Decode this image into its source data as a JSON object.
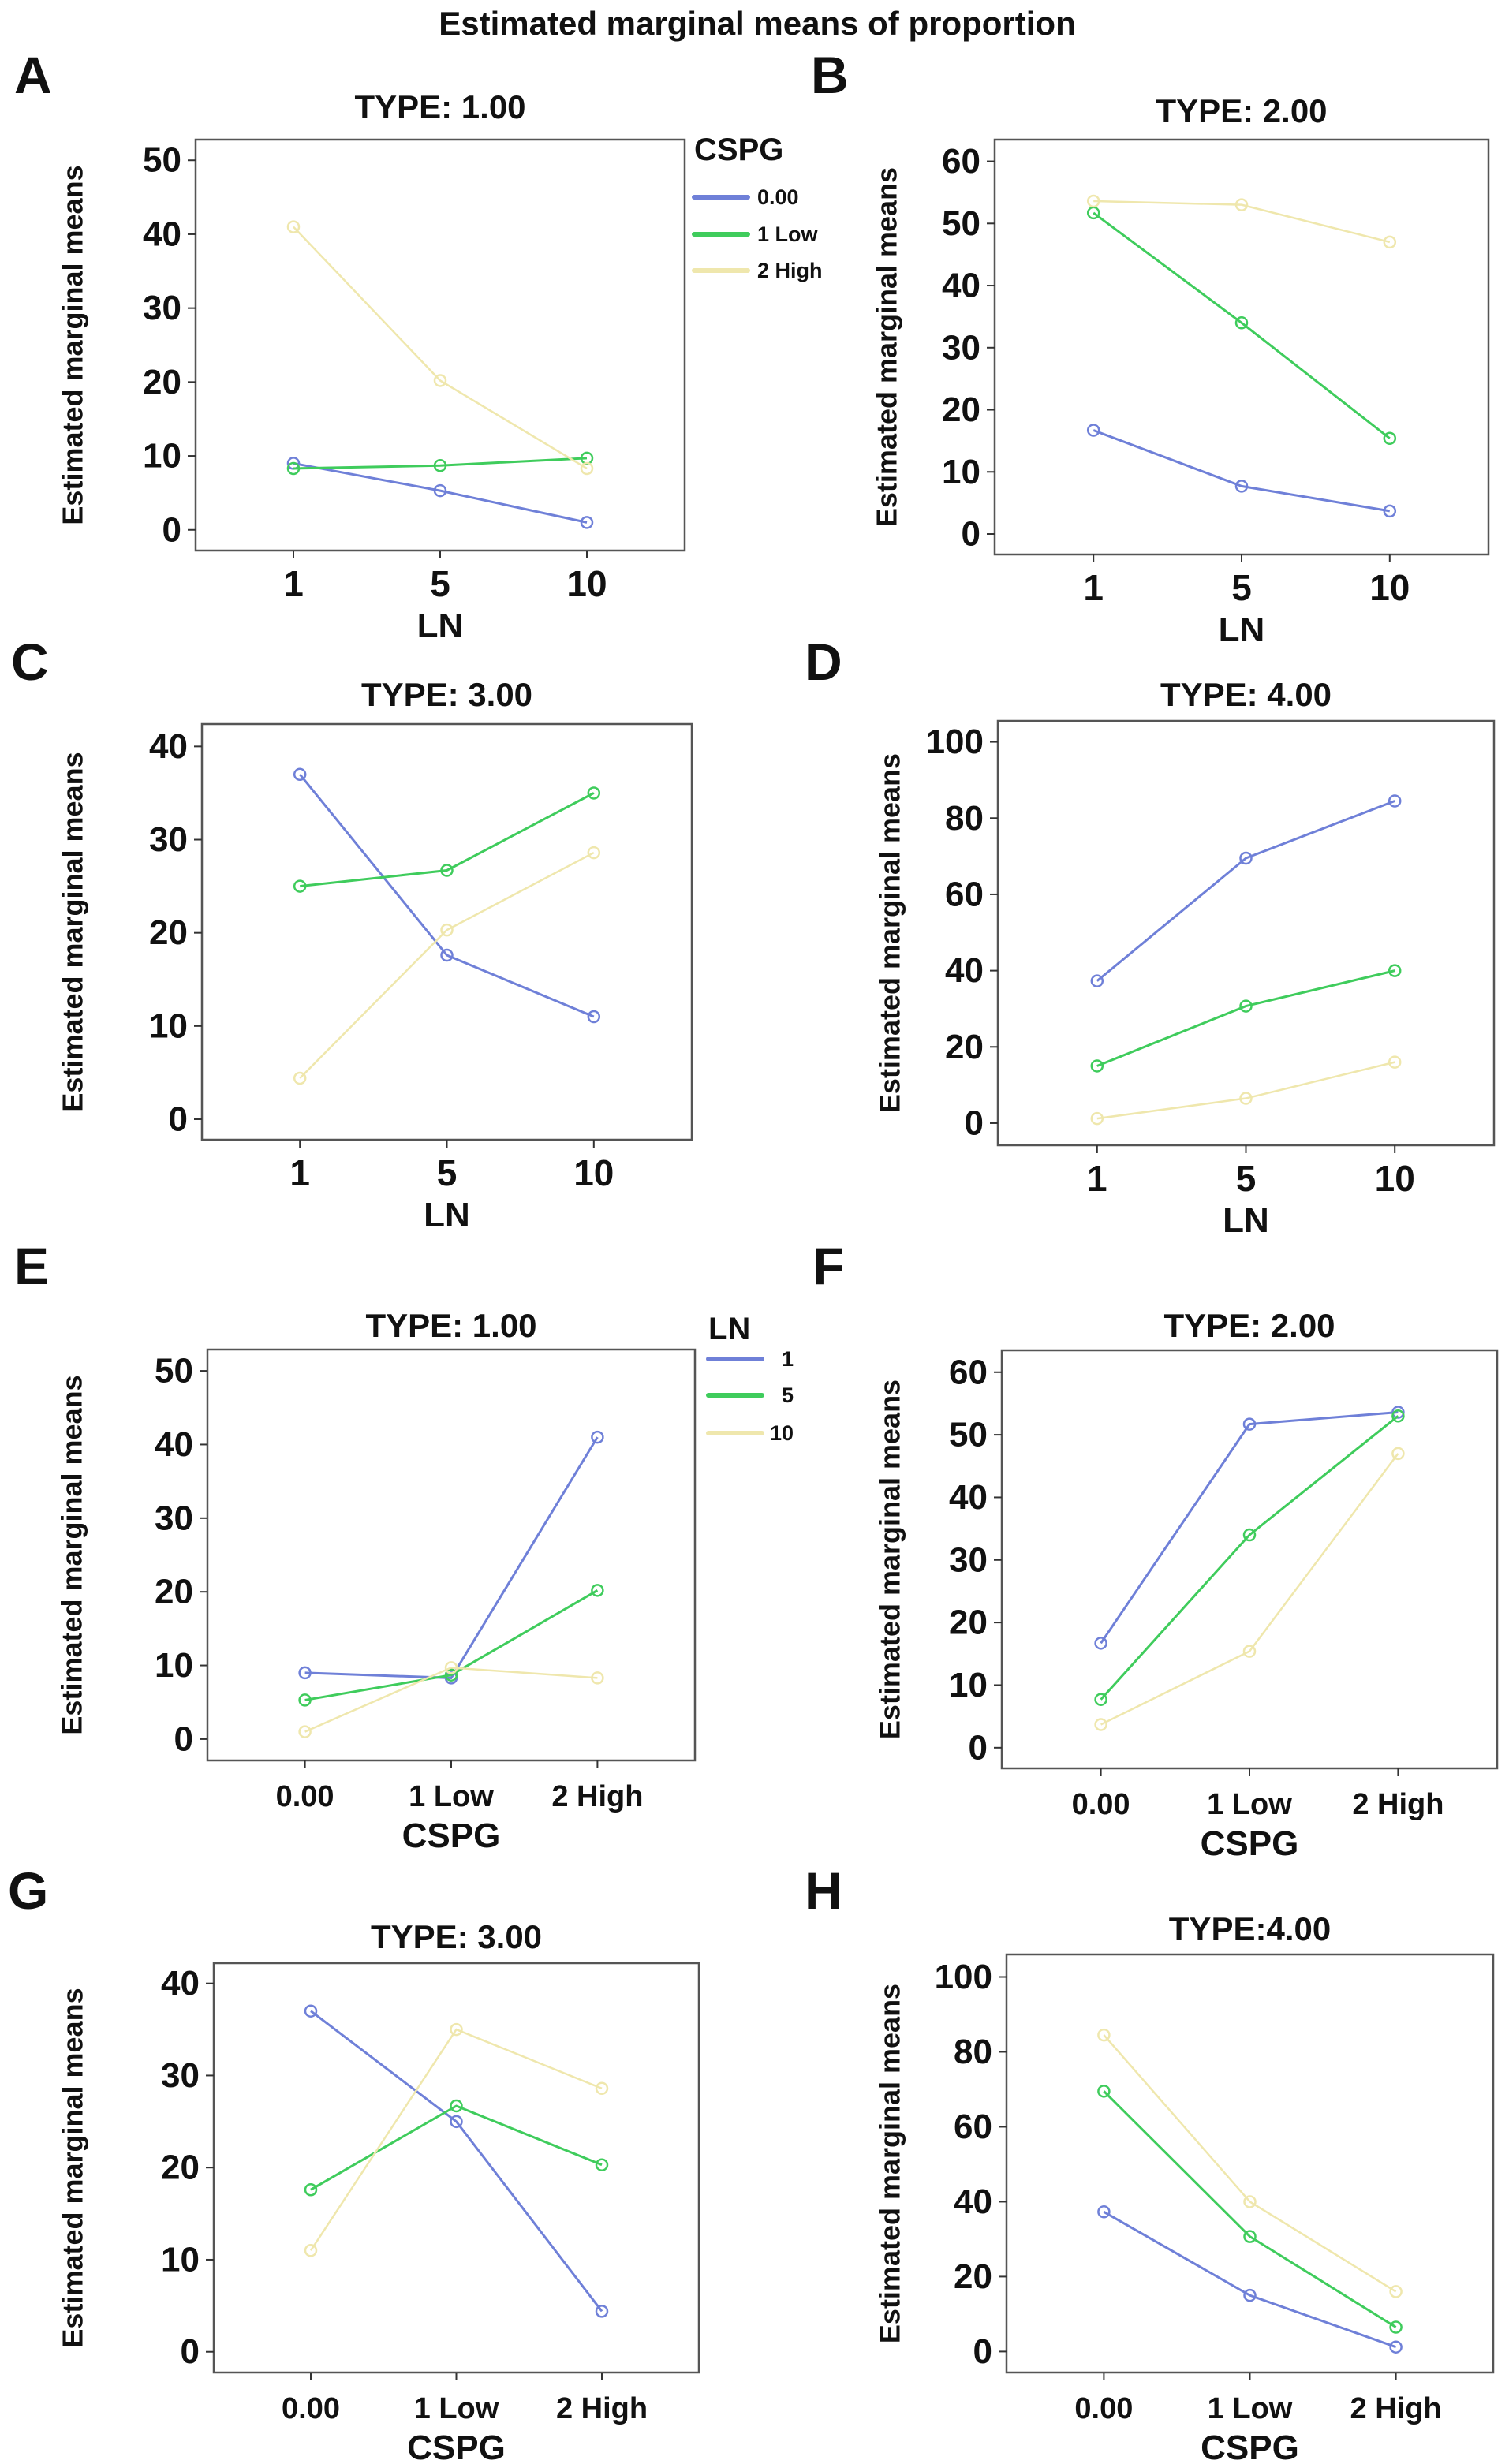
{
  "title": "Estimated marginal means of proportion",
  "colors": {
    "series_1": "#6f80d8",
    "series_2": "#3fcc5c",
    "series_3": "#efe7ad",
    "frame": "#555555"
  },
  "chart_data": [
    {
      "panel": "A",
      "type": "line",
      "title": "TYPE: 1.00",
      "xlabel": "LN",
      "ylabel": "Estimated marginal means",
      "categories": [
        "1",
        "5",
        "10"
      ],
      "ylim": [
        -2.8,
        52.8
      ],
      "yticks": [
        0,
        10,
        20,
        30,
        40,
        50
      ],
      "legend": {
        "title": "CSPG",
        "placement": "right"
      },
      "series": [
        {
          "name": "0.00",
          "values": [
            9.0,
            5.3,
            1.0
          ]
        },
        {
          "name": "1 Low",
          "values": [
            8.3,
            8.7,
            9.7
          ]
        },
        {
          "name": "2 High",
          "values": [
            41.0,
            20.2,
            8.3
          ]
        }
      ]
    },
    {
      "panel": "B",
      "type": "line",
      "title": "TYPE: 2.00",
      "xlabel": "LN",
      "ylabel": "Estimated marginal means",
      "categories": [
        "1",
        "5",
        "10"
      ],
      "ylim": [
        -3.3,
        63.5
      ],
      "yticks": [
        0,
        10,
        20,
        30,
        40,
        50,
        60
      ],
      "series": [
        {
          "name": "0.00",
          "values": [
            16.7,
            7.7,
            3.7
          ]
        },
        {
          "name": "1 Low",
          "values": [
            51.7,
            34.0,
            15.4
          ]
        },
        {
          "name": "2 High",
          "values": [
            53.6,
            53.0,
            47.0
          ]
        }
      ]
    },
    {
      "panel": "C",
      "type": "line",
      "title": "TYPE: 3.00",
      "xlabel": "LN",
      "ylabel": "Estimated marginal means",
      "categories": [
        "1",
        "5",
        "10"
      ],
      "ylim": [
        -2.2,
        42.4
      ],
      "yticks": [
        0,
        10,
        20,
        30,
        40
      ],
      "series": [
        {
          "name": "0.00",
          "values": [
            37.0,
            17.6,
            11.0
          ]
        },
        {
          "name": "1 Low",
          "values": [
            25.0,
            26.7,
            35.0
          ]
        },
        {
          "name": "2 High",
          "values": [
            4.4,
            20.3,
            28.6
          ]
        }
      ]
    },
    {
      "panel": "D",
      "type": "line",
      "title": "TYPE: 4.00",
      "xlabel": "LN",
      "ylabel": "Estimated marginal means",
      "categories": [
        "1",
        "5",
        "10"
      ],
      "ylim": [
        -5.8,
        105.5
      ],
      "yticks": [
        0,
        20,
        40,
        60,
        80,
        100
      ],
      "series": [
        {
          "name": "0.00",
          "values": [
            37.3,
            69.5,
            84.5
          ]
        },
        {
          "name": "1 Low",
          "values": [
            15.0,
            30.7,
            40.0
          ]
        },
        {
          "name": "2 High",
          "values": [
            1.2,
            6.5,
            16.0
          ]
        }
      ]
    },
    {
      "panel": "E",
      "type": "line",
      "title": "TYPE: 1.00",
      "xlabel": "CSPG",
      "ylabel": "Estimated marginal means",
      "categories": [
        "0.00",
        "1 Low",
        "2 High"
      ],
      "ylim": [
        -2.9,
        52.9
      ],
      "yticks": [
        0,
        10,
        20,
        30,
        40,
        50
      ],
      "legend": {
        "title": "LN",
        "placement": "right"
      },
      "series": [
        {
          "name": "1",
          "values": [
            9.0,
            8.3,
            41.0
          ]
        },
        {
          "name": "5",
          "values": [
            5.3,
            8.7,
            20.2
          ]
        },
        {
          "name": "10",
          "values": [
            1.0,
            9.7,
            8.3
          ]
        }
      ]
    },
    {
      "panel": "F",
      "type": "line",
      "title": "TYPE: 2.00",
      "xlabel": "CSPG",
      "ylabel": "Estimated marginal means",
      "categories": [
        "0.00",
        "1 Low",
        "2 High"
      ],
      "ylim": [
        -3.3,
        63.5
      ],
      "yticks": [
        0,
        10,
        20,
        30,
        40,
        50,
        60
      ],
      "series": [
        {
          "name": "1",
          "values": [
            16.7,
            51.7,
            53.6
          ]
        },
        {
          "name": "5",
          "values": [
            7.7,
            34.0,
            53.0
          ]
        },
        {
          "name": "10",
          "values": [
            3.7,
            15.4,
            47.0
          ]
        }
      ]
    },
    {
      "panel": "G",
      "type": "line",
      "title": "TYPE: 3.00",
      "xlabel": "CSPG",
      "ylabel": "Estimated marginal means",
      "categories": [
        "0.00",
        "1 Low",
        "2 High"
      ],
      "ylim": [
        -2.25,
        42.2
      ],
      "yticks": [
        0,
        10,
        20,
        30,
        40
      ],
      "series": [
        {
          "name": "1",
          "values": [
            37.0,
            25.0,
            4.4
          ]
        },
        {
          "name": "5",
          "values": [
            17.6,
            26.7,
            20.3
          ]
        },
        {
          "name": "10",
          "values": [
            11.0,
            35.0,
            28.6
          ]
        }
      ]
    },
    {
      "panel": "H",
      "type": "line",
      "title": "TYPE:4.00",
      "xlabel": "CSPG",
      "ylabel": "Estimated marginal means",
      "categories": [
        "0.00",
        "1 Low",
        "2 High"
      ],
      "ylim": [
        -5.6,
        106
      ],
      "yticks": [
        0,
        20,
        40,
        60,
        80,
        100
      ],
      "series": [
        {
          "name": "1",
          "values": [
            37.3,
            15.0,
            1.2
          ]
        },
        {
          "name": "5",
          "values": [
            69.5,
            30.7,
            6.5
          ]
        },
        {
          "name": "10",
          "values": [
            84.5,
            40.0,
            16.0
          ]
        }
      ]
    }
  ]
}
